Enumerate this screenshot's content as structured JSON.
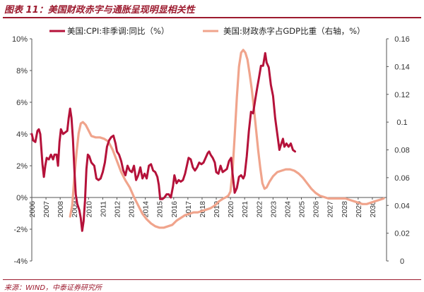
{
  "header": {
    "title": "图表 11：美国财政赤字与通胀呈现明显相关性"
  },
  "footer": {
    "source": "来源：WIND，中泰证券研究所"
  },
  "chart_data": {
    "type": "line",
    "title": "图表 11：美国财政赤字与通胀呈现明显相关性",
    "xlim": [
      2006,
      2031
    ],
    "x_ticks": [
      "2006",
      "2007",
      "2008",
      "2009",
      "2010",
      "2011",
      "2012",
      "2013",
      "2014",
      "2015",
      "2016",
      "2017",
      "2018",
      "2019",
      "2020",
      "2021",
      "2022",
      "2023",
      "2024",
      "2025",
      "2026",
      "2027",
      "2028",
      "2029",
      "2030"
    ],
    "y_left": {
      "lim": [
        -4,
        10
      ],
      "ticks": [
        "-4%",
        "-2%",
        "0%",
        "2%",
        "4%",
        "6%",
        "8%",
        "10%"
      ],
      "values": [
        -4,
        -2,
        0,
        2,
        4,
        6,
        8,
        10
      ]
    },
    "y_right": {
      "lim": [
        0,
        0.16
      ],
      "ticks": [
        "0",
        "0.02",
        "0.04",
        "0.06",
        "0.08",
        "0.1",
        "0.12",
        "0.14",
        "0.16"
      ],
      "values": [
        0,
        0.02,
        0.04,
        0.06,
        0.08,
        0.1,
        0.12,
        0.14,
        0.16
      ]
    },
    "legend_position": "top",
    "grid": false,
    "series": [
      {
        "name": "美国:CPI:非季调:同比（%）",
        "axis": "left",
        "color": "#b5123a",
        "points": [
          [
            2006.0,
            4.0
          ],
          [
            2006.1,
            3.6
          ],
          [
            2006.25,
            3.5
          ],
          [
            2006.4,
            4.2
          ],
          [
            2006.5,
            4.3
          ],
          [
            2006.6,
            4.0
          ],
          [
            2006.75,
            2.1
          ],
          [
            2006.85,
            1.3
          ],
          [
            2006.95,
            2.0
          ],
          [
            2007.05,
            2.5
          ],
          [
            2007.2,
            2.4
          ],
          [
            2007.35,
            2.7
          ],
          [
            2007.5,
            2.4
          ],
          [
            2007.6,
            2.7
          ],
          [
            2007.75,
            2.7
          ],
          [
            2007.85,
            2.0
          ],
          [
            2007.95,
            3.5
          ],
          [
            2008.05,
            4.3
          ],
          [
            2008.2,
            4.0
          ],
          [
            2008.35,
            4.1
          ],
          [
            2008.5,
            4.2
          ],
          [
            2008.6,
            5.0
          ],
          [
            2008.7,
            5.6
          ],
          [
            2008.8,
            5.0
          ],
          [
            2008.9,
            3.7
          ],
          [
            2009.0,
            1.8
          ],
          [
            2009.1,
            0.2
          ],
          [
            2009.2,
            -0.4
          ],
          [
            2009.35,
            -0.8
          ],
          [
            2009.45,
            -1.3
          ],
          [
            2009.55,
            -2.1
          ],
          [
            2009.65,
            -1.5
          ],
          [
            2009.75,
            -0.2
          ],
          [
            2009.85,
            1.8
          ],
          [
            2009.95,
            2.7
          ],
          [
            2010.05,
            2.6
          ],
          [
            2010.2,
            2.2
          ],
          [
            2010.4,
            2.0
          ],
          [
            2010.55,
            1.2
          ],
          [
            2010.7,
            1.1
          ],
          [
            2010.85,
            1.2
          ],
          [
            2011.0,
            1.6
          ],
          [
            2011.15,
            2.2
          ],
          [
            2011.3,
            3.2
          ],
          [
            2011.45,
            3.6
          ],
          [
            2011.6,
            3.8
          ],
          [
            2011.75,
            3.9
          ],
          [
            2011.9,
            3.4
          ],
          [
            2012.0,
            2.9
          ],
          [
            2012.15,
            2.7
          ],
          [
            2012.3,
            2.3
          ],
          [
            2012.45,
            1.7
          ],
          [
            2012.6,
            1.4
          ],
          [
            2012.75,
            2.0
          ],
          [
            2012.9,
            1.7
          ],
          [
            2013.05,
            1.6
          ],
          [
            2013.2,
            2.0
          ],
          [
            2013.35,
            1.1
          ],
          [
            2013.5,
            1.4
          ],
          [
            2013.65,
            1.9
          ],
          [
            2013.8,
            1.2
          ],
          [
            2013.95,
            1.5
          ],
          [
            2014.1,
            1.2
          ],
          [
            2014.25,
            2.0
          ],
          [
            2014.4,
            2.1
          ],
          [
            2014.55,
            1.7
          ],
          [
            2014.7,
            1.6
          ],
          [
            2014.85,
            1.3
          ],
          [
            2014.95,
            0.8
          ],
          [
            2015.05,
            -0.1
          ],
          [
            2015.2,
            -0.1
          ],
          [
            2015.35,
            0.0
          ],
          [
            2015.5,
            0.2
          ],
          [
            2015.65,
            0.2
          ],
          [
            2015.8,
            0.0
          ],
          [
            2015.95,
            0.7
          ],
          [
            2016.05,
            1.4
          ],
          [
            2016.2,
            0.9
          ],
          [
            2016.35,
            1.1
          ],
          [
            2016.5,
            1.0
          ],
          [
            2016.65,
            1.1
          ],
          [
            2016.8,
            1.5
          ],
          [
            2016.95,
            2.1
          ],
          [
            2017.05,
            2.5
          ],
          [
            2017.2,
            2.4
          ],
          [
            2017.35,
            1.9
          ],
          [
            2017.5,
            1.7
          ],
          [
            2017.65,
            1.9
          ],
          [
            2017.8,
            2.2
          ],
          [
            2017.95,
            2.1
          ],
          [
            2018.1,
            2.2
          ],
          [
            2018.25,
            2.5
          ],
          [
            2018.4,
            2.8
          ],
          [
            2018.5,
            2.9
          ],
          [
            2018.6,
            2.7
          ],
          [
            2018.75,
            2.5
          ],
          [
            2018.9,
            2.2
          ],
          [
            2019.0,
            1.6
          ],
          [
            2019.15,
            1.5
          ],
          [
            2019.3,
            2.0
          ],
          [
            2019.45,
            1.6
          ],
          [
            2019.6,
            1.7
          ],
          [
            2019.75,
            1.8
          ],
          [
            2019.9,
            2.3
          ],
          [
            2020.05,
            2.5
          ],
          [
            2020.15,
            1.5
          ],
          [
            2020.3,
            0.3
          ],
          [
            2020.45,
            0.6
          ],
          [
            2020.6,
            1.3
          ],
          [
            2020.75,
            1.4
          ],
          [
            2020.9,
            1.2
          ],
          [
            2021.0,
            1.4
          ],
          [
            2021.15,
            2.6
          ],
          [
            2021.3,
            4.2
          ],
          [
            2021.45,
            5.4
          ],
          [
            2021.6,
            5.3
          ],
          [
            2021.75,
            6.2
          ],
          [
            2021.9,
            7.0
          ],
          [
            2022.0,
            7.5
          ],
          [
            2022.15,
            8.3
          ],
          [
            2022.3,
            8.3
          ],
          [
            2022.45,
            9.1
          ],
          [
            2022.55,
            8.5
          ],
          [
            2022.7,
            8.2
          ],
          [
            2022.85,
            7.1
          ],
          [
            2023.0,
            6.4
          ],
          [
            2023.15,
            5.0
          ],
          [
            2023.3,
            4.0
          ],
          [
            2023.45,
            3.0
          ],
          [
            2023.55,
            3.3
          ],
          [
            2023.7,
            3.7
          ],
          [
            2023.8,
            3.2
          ],
          [
            2023.95,
            3.4
          ],
          [
            2024.1,
            3.2
          ],
          [
            2024.25,
            3.4
          ],
          [
            2024.4,
            3.0
          ],
          [
            2024.55,
            2.9
          ]
        ]
      },
      {
        "name": "美国:财政赤字占GDP比重（右轴，%）",
        "axis": "right",
        "color": "#f0a48c",
        "points": [
          [
            2008.7,
            0.032
          ],
          [
            2008.85,
            0.04
          ],
          [
            2009.0,
            0.06
          ],
          [
            2009.15,
            0.078
          ],
          [
            2009.3,
            0.092
          ],
          [
            2009.45,
            0.099
          ],
          [
            2009.6,
            0.1
          ],
          [
            2009.8,
            0.098
          ],
          [
            2010.0,
            0.094
          ],
          [
            2010.2,
            0.09
          ],
          [
            2010.5,
            0.089
          ],
          [
            2010.8,
            0.089
          ],
          [
            2011.1,
            0.088
          ],
          [
            2011.4,
            0.086
          ],
          [
            2011.7,
            0.08
          ],
          [
            2012.0,
            0.072
          ],
          [
            2012.3,
            0.064
          ],
          [
            2012.6,
            0.058
          ],
          [
            2012.9,
            0.053
          ],
          [
            2013.2,
            0.046
          ],
          [
            2013.5,
            0.04
          ],
          [
            2013.8,
            0.034
          ],
          [
            2014.1,
            0.03
          ],
          [
            2014.4,
            0.027
          ],
          [
            2014.7,
            0.025
          ],
          [
            2015.0,
            0.024
          ],
          [
            2015.3,
            0.024
          ],
          [
            2015.6,
            0.025
          ],
          [
            2015.9,
            0.026
          ],
          [
            2016.2,
            0.029
          ],
          [
            2016.5,
            0.031
          ],
          [
            2016.8,
            0.033
          ],
          [
            2017.1,
            0.034
          ],
          [
            2017.4,
            0.035
          ],
          [
            2017.7,
            0.035
          ],
          [
            2018.0,
            0.036
          ],
          [
            2018.3,
            0.037
          ],
          [
            2018.6,
            0.038
          ],
          [
            2018.9,
            0.04
          ],
          [
            2019.2,
            0.043
          ],
          [
            2019.5,
            0.045
          ],
          [
            2019.7,
            0.046
          ],
          [
            2019.85,
            0.047
          ],
          [
            2020.0,
            0.05
          ],
          [
            2020.15,
            0.065
          ],
          [
            2020.3,
            0.09
          ],
          [
            2020.45,
            0.118
          ],
          [
            2020.6,
            0.14
          ],
          [
            2020.75,
            0.15
          ],
          [
            2020.9,
            0.152
          ],
          [
            2021.05,
            0.15
          ],
          [
            2021.2,
            0.145
          ],
          [
            2021.35,
            0.135
          ],
          [
            2021.5,
            0.124
          ],
          [
            2021.65,
            0.11
          ],
          [
            2021.8,
            0.095
          ],
          [
            2021.95,
            0.08
          ],
          [
            2022.1,
            0.067
          ],
          [
            2022.25,
            0.056
          ],
          [
            2022.4,
            0.052
          ],
          [
            2022.55,
            0.053
          ],
          [
            2022.75,
            0.057
          ],
          [
            2023.0,
            0.061
          ],
          [
            2023.3,
            0.064
          ],
          [
            2023.6,
            0.065
          ],
          [
            2023.9,
            0.066
          ],
          [
            2024.2,
            0.066
          ],
          [
            2024.5,
            0.065
          ],
          [
            2024.8,
            0.063
          ],
          [
            2025.1,
            0.06
          ],
          [
            2025.4,
            0.056
          ],
          [
            2025.7,
            0.052
          ],
          [
            2026.0,
            0.049
          ],
          [
            2026.3,
            0.047
          ],
          [
            2026.6,
            0.046
          ],
          [
            2026.9,
            0.045
          ],
          [
            2027.2,
            0.045
          ],
          [
            2027.5,
            0.045
          ],
          [
            2027.8,
            0.045
          ],
          [
            2028.1,
            0.045
          ],
          [
            2028.4,
            0.044
          ],
          [
            2028.7,
            0.043
          ],
          [
            2029.0,
            0.042
          ],
          [
            2029.3,
            0.041
          ],
          [
            2029.6,
            0.041
          ],
          [
            2029.9,
            0.042
          ],
          [
            2030.2,
            0.043
          ],
          [
            2030.5,
            0.044
          ],
          [
            2030.8,
            0.045
          ]
        ]
      }
    ]
  },
  "colors": {
    "accent": "#9c1a2e",
    "cpi": "#b5123a",
    "deficit": "#f0a48c"
  }
}
